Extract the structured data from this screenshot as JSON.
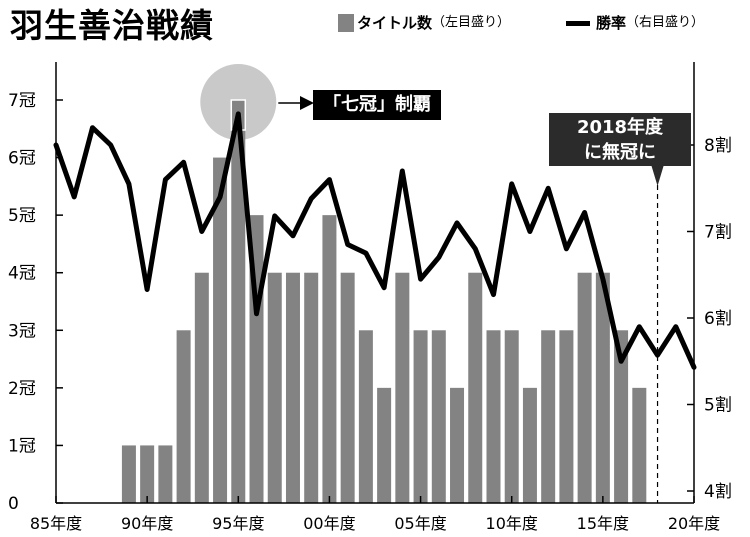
{
  "title": "羽生善治戦績",
  "legend": {
    "bar_label": "タイトル数",
    "bar_note": "（左目盛り）",
    "line_label": "勝率",
    "line_note": "（右目盛り）"
  },
  "annotations": {
    "seven_crowns": "「七冠」制覇",
    "no_title_line1": "2018年度",
    "no_title_line2": "に無冠に"
  },
  "colors": {
    "bar": "#838383",
    "line": "#000000",
    "highlight_circle": "#c9c9c9"
  },
  "chart_data": {
    "type": "bar+line",
    "title": "羽生善治戦績",
    "x": [
      1985,
      1986,
      1987,
      1988,
      1989,
      1990,
      1991,
      1992,
      1993,
      1994,
      1995,
      1996,
      1997,
      1998,
      1999,
      2000,
      2001,
      2002,
      2003,
      2004,
      2005,
      2006,
      2007,
      2008,
      2009,
      2010,
      2011,
      2012,
      2013,
      2014,
      2015,
      2016,
      2017,
      2018,
      2019,
      2020
    ],
    "xlim": [
      1985,
      2020
    ],
    "x_tick_labels": [
      "85年度",
      "90年度",
      "95年度",
      "00年度",
      "05年度",
      "10年度",
      "15年度",
      "20年度"
    ],
    "series": [
      {
        "name": "タイトル数",
        "type": "bar",
        "axis": "left",
        "x": [
          1989,
          1990,
          1991,
          1992,
          1993,
          1994,
          1995,
          1996,
          1997,
          1998,
          1999,
          2000,
          2001,
          2002,
          2003,
          2004,
          2005,
          2006,
          2007,
          2008,
          2009,
          2010,
          2011,
          2012,
          2013,
          2014,
          2015,
          2016,
          2017
        ],
        "values": [
          1,
          1,
          1,
          3,
          4,
          6,
          7,
          5,
          4,
          4,
          4,
          5,
          4,
          3,
          2,
          4,
          3,
          3,
          2,
          4,
          3,
          3,
          2,
          3,
          3,
          4,
          4,
          3,
          2
        ]
      },
      {
        "name": "勝率",
        "type": "line",
        "axis": "right",
        "x": [
          1985,
          1986,
          1987,
          1988,
          1989,
          1990,
          1991,
          1992,
          1993,
          1994,
          1995,
          1996,
          1997,
          1998,
          1999,
          2000,
          2001,
          2002,
          2003,
          2004,
          2005,
          2006,
          2007,
          2008,
          2009,
          2010,
          2011,
          2012,
          2013,
          2014,
          2015,
          2016,
          2017,
          2018,
          2019,
          2020
        ],
        "values": [
          0.8,
          0.74,
          0.82,
          0.8,
          0.755,
          0.633,
          0.76,
          0.78,
          0.7,
          0.74,
          0.836,
          0.605,
          0.718,
          0.695,
          0.738,
          0.76,
          0.685,
          0.675,
          0.635,
          0.77,
          0.645,
          0.67,
          0.71,
          0.68,
          0.627,
          0.755,
          0.7,
          0.75,
          0.68,
          0.722,
          0.645,
          0.55,
          0.59,
          0.557,
          0.59,
          0.543
        ]
      }
    ],
    "y_left": {
      "lim": [
        0,
        7
      ],
      "ticks": [
        0,
        1,
        2,
        3,
        4,
        5,
        6,
        7
      ],
      "tick_labels": [
        "0",
        "1冠",
        "2冠",
        "3冠",
        "4冠",
        "5冠",
        "6冠",
        "7冠"
      ]
    },
    "y_right": {
      "lim": [
        0.4,
        0.8
      ],
      "ticks": [
        0.4,
        0.5,
        0.6,
        0.7,
        0.8
      ],
      "tick_labels": [
        "4割",
        "5割",
        "6割",
        "7割",
        "8割"
      ]
    },
    "highlight": {
      "x": 1995,
      "label": "「七冠」制覇"
    },
    "reference_line": {
      "x": 2018,
      "style": "dashed",
      "label": "2018年度に無冠に"
    },
    "grid": false
  }
}
